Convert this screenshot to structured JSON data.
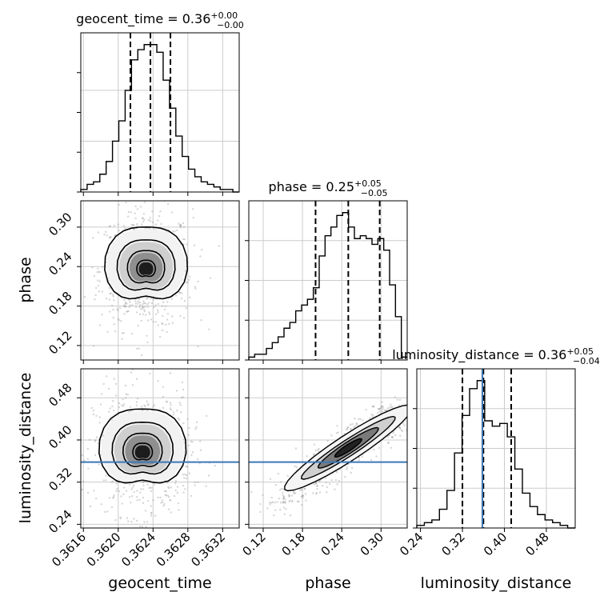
{
  "chart_data": {
    "type": "corner",
    "parameters": [
      "geocent_time",
      "phase",
      "luminosity_distance"
    ],
    "titles": [
      {
        "name": "geocent_time",
        "median": "0.36",
        "plus": "+0.00",
        "minus": "−0.00"
      },
      {
        "name": "phase",
        "median": "0.25",
        "plus": "+0.05",
        "minus": "−0.05"
      },
      {
        "name": "luminosity_distance",
        "median": "0.36",
        "plus": "+0.05",
        "minus": "−0.04"
      }
    ],
    "ranges": {
      "geocent_time": [
        0.36157,
        0.36339
      ],
      "phase": [
        0.098,
        0.34
      ],
      "luminosity_distance": [
        0.233,
        0.535
      ]
    },
    "ticks": {
      "geocent_time": [
        "0.3616",
        "0.3620",
        "0.3624",
        "0.3628",
        "0.3632"
      ],
      "phase": [
        "0.12",
        "0.18",
        "0.24",
        "0.30"
      ],
      "luminosity_distance": [
        "0.24",
        "0.32",
        "0.40",
        "0.48"
      ]
    },
    "tick_values": {
      "geocent_time": [
        0.3616,
        0.362,
        0.3624,
        0.3628,
        0.3632
      ],
      "phase": [
        0.12,
        0.18,
        0.24,
        0.3
      ],
      "luminosity_distance": [
        0.24,
        0.32,
        0.4,
        0.48
      ]
    },
    "quantiles": {
      "geocent_time": [
        0.36214,
        0.36237,
        0.3626
      ],
      "phase": [
        0.2,
        0.25,
        0.298
      ],
      "luminosity_distance": [
        0.32,
        0.36,
        0.413
      ]
    },
    "truth": {
      "luminosity_distance": 0.358
    },
    "histograms": {
      "geocent_time": {
        "range": [
          0.36157,
          0.36339
        ],
        "counts": [
          1,
          3,
          4,
          7,
          12,
          20,
          28,
          40,
          52,
          56,
          58,
          58,
          55,
          44,
          33,
          22,
          14,
          9,
          6,
          4,
          3,
          2,
          1,
          1,
          0
        ]
      },
      "phase": {
        "range": [
          0.098,
          0.34
        ],
        "counts": [
          1,
          2,
          2,
          4,
          6,
          8,
          11,
          13,
          17,
          19,
          21,
          25,
          36,
          43,
          46,
          50,
          51,
          46,
          42,
          43,
          42,
          40,
          42,
          38,
          26,
          15,
          1
        ]
      },
      "luminosity_distance": {
        "range": [
          0.233,
          0.535
        ],
        "counts": [
          1,
          2,
          3,
          7,
          14,
          28,
          42,
          52,
          55,
          40,
          38,
          39,
          34,
          22,
          13,
          8,
          5,
          3,
          2,
          1,
          0
        ]
      }
    },
    "grid": true,
    "xlabel": [
      "geocent_time",
      "phase",
      "luminosity_distance"
    ],
    "ylabel": [
      "phase",
      "luminosity_distance"
    ]
  },
  "colors": {
    "truth": "#3a78b8",
    "lines": "#000000",
    "grid": "#cccccc",
    "points": "#8a8a8a"
  }
}
